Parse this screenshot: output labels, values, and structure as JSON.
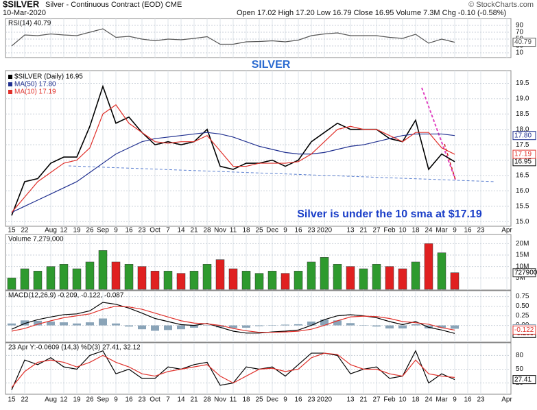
{
  "header": {
    "symbol": "$SILVER",
    "description": "Silver - Continuous Contract (EOD) CME",
    "date": "10-Mar-2020",
    "quote": "Open 17.02 High 17.20 Low 16.79 Close 16.95 Volume 7.3M Chg -0.10 (-0.58%)",
    "copyright": "© StockCharts.com"
  },
  "chart_data": [
    {
      "type": "line",
      "title": "RSI(14) 40.79",
      "ylim": [
        0,
        100
      ],
      "yticks": [
        10,
        30,
        50,
        70,
        90
      ],
      "grid": true,
      "series": [
        {
          "color": "#555555",
          "last_label": "40.79",
          "values": [
            30,
            62,
            60,
            65,
            62,
            60,
            70,
            80,
            55,
            58,
            50,
            45,
            50,
            48,
            52,
            57,
            35,
            35,
            42,
            43,
            45,
            42,
            47,
            60,
            65,
            68,
            60,
            60,
            60,
            55,
            52,
            64,
            38,
            50,
            40.79,
            null,
            null,
            null,
            null
          ]
        }
      ]
    },
    {
      "type": "line",
      "title": "SILVER",
      "annotation": "Silver is under the 10 sma at $17.19",
      "ylim": [
        14.85,
        19.8
      ],
      "yticks": [
        {
          "value": 15,
          "label": "15.0"
        },
        15.5,
        {
          "value": 16,
          "label": "16.0"
        },
        16.5,
        {
          "value": 17,
          "label": "17.0"
        },
        17.5,
        {
          "value": 18,
          "label": "18.0"
        },
        18.5,
        {
          "value": 19,
          "label": "19.0"
        },
        19.5
      ],
      "grid": true,
      "categories": [
        "15",
        "22",
        null,
        "Aug",
        "12",
        "19",
        "26",
        "Sep",
        "9",
        "16",
        "23",
        "Oct",
        "7",
        "14",
        "21",
        "28",
        "Nov",
        "11",
        "18",
        "25",
        "Dec",
        "9",
        "16",
        "23",
        "2020",
        null,
        "13",
        "21",
        "27",
        "Feb",
        "10",
        "18",
        "24",
        "Mar",
        "9",
        "16",
        "23",
        null,
        "Apr"
      ],
      "series": [
        {
          "name": "$SILVER (Daily) 16.95",
          "color": "#000000",
          "last_label": "16.95",
          "values": [
            15.2,
            16.3,
            16.4,
            16.9,
            17.1,
            17.1,
            18.1,
            19.4,
            18.2,
            18.4,
            17.9,
            17.5,
            17.6,
            17.5,
            17.6,
            18.0,
            16.8,
            16.7,
            16.9,
            16.9,
            17.0,
            16.8,
            17.0,
            17.6,
            17.9,
            18.2,
            18.0,
            18.0,
            18.0,
            17.7,
            17.6,
            18.3,
            16.7,
            17.2,
            16.95,
            null,
            null,
            null,
            null
          ]
        },
        {
          "name": "MA(50) 17.80",
          "color": "#1f2f8f",
          "last_label": "17.80",
          "values": [
            15.3,
            15.5,
            15.7,
            15.9,
            16.1,
            16.3,
            16.6,
            16.9,
            17.2,
            17.4,
            17.6,
            17.7,
            17.75,
            17.8,
            17.85,
            17.9,
            17.85,
            17.75,
            17.6,
            17.45,
            17.35,
            17.25,
            17.2,
            17.2,
            17.25,
            17.35,
            17.45,
            17.5,
            17.6,
            17.7,
            17.8,
            17.85,
            17.85,
            17.85,
            17.8,
            null,
            null,
            null,
            null
          ]
        },
        {
          "name": "MA(10) 17.19",
          "color": "#e0302a",
          "last_label": "17.19",
          "values": [
            15.3,
            15.8,
            16.3,
            16.6,
            16.9,
            17.0,
            17.4,
            18.5,
            18.8,
            18.2,
            17.9,
            17.6,
            17.55,
            17.6,
            17.6,
            17.8,
            17.3,
            16.8,
            16.8,
            16.9,
            16.9,
            16.9,
            16.95,
            17.2,
            17.6,
            18.0,
            18.1,
            18.0,
            18.0,
            17.8,
            17.6,
            17.9,
            17.9,
            17.4,
            17.19,
            null,
            null,
            null,
            null
          ]
        }
      ]
    },
    {
      "type": "bar",
      "title": "Volume 7,279,000",
      "ylim": [
        0,
        24
      ],
      "yticks": [
        {
          "value": 5,
          "label": "5M"
        },
        {
          "value": 10,
          "label": "10M"
        },
        {
          "value": 15,
          "label": "15M"
        },
        {
          "value": 20,
          "label": "20M"
        }
      ],
      "grid": true,
      "up_color": "#2e9a2e",
      "down_color": "#e02020",
      "series": [
        {
          "last_label": "7279000",
          "values": [
            5,
            9,
            8,
            10,
            11,
            9,
            12,
            17,
            12,
            11,
            10,
            8,
            8,
            7,
            8,
            11,
            13,
            9,
            8,
            7,
            8,
            7,
            8,
            12,
            14,
            11,
            10,
            9,
            11,
            10,
            9,
            12,
            20,
            16,
            7.279,
            null,
            null,
            null,
            null
          ]
        }
      ]
    },
    {
      "type": "line",
      "title": "MACD(12,26,9) -0.209, -0.122, -0.087",
      "ylim": [
        -0.4,
        0.85
      ],
      "yticks": [
        -0.25,
        {
          "value": 0,
          "label": "0.00"
        },
        0.25,
        {
          "value": 0.5,
          "label": "0.50"
        },
        0.75
      ],
      "grid": true,
      "series": [
        {
          "style": "bar",
          "color": "#8aa4b8",
          "last_label": "-0.087",
          "values": [
            0.05,
            0.13,
            0.12,
            0.1,
            0.08,
            0.05,
            0.08,
            0.18,
            0.05,
            -0.03,
            -0.1,
            -0.14,
            -0.12,
            -0.1,
            -0.06,
            0.01,
            -0.05,
            -0.07,
            -0.06,
            -0.02,
            0.01,
            0.02,
            0.03,
            0.1,
            0.15,
            0.13,
            0.06,
            0.01,
            -0.03,
            -0.08,
            -0.08,
            0.03,
            -0.08,
            -0.06,
            -0.087,
            null,
            null,
            null,
            null
          ]
        },
        {
          "color": "#000000",
          "last_label": "-0.209",
          "values": [
            -0.1,
            0.05,
            0.15,
            0.22,
            0.28,
            0.3,
            0.38,
            0.6,
            0.55,
            0.45,
            0.32,
            0.18,
            0.1,
            0.02,
            0.0,
            0.05,
            -0.05,
            -0.15,
            -0.2,
            -0.2,
            -0.17,
            -0.15,
            -0.12,
            0.0,
            0.15,
            0.25,
            0.28,
            0.25,
            0.2,
            0.1,
            0.02,
            0.1,
            -0.05,
            -0.12,
            -0.209,
            null,
            null,
            null,
            null
          ]
        },
        {
          "color": "#e0302a",
          "last_label": "-0.122",
          "values": [
            -0.15,
            -0.08,
            0.03,
            0.12,
            0.2,
            0.25,
            0.3,
            0.42,
            0.5,
            0.48,
            0.42,
            0.32,
            0.22,
            0.12,
            0.06,
            0.04,
            0.0,
            -0.08,
            -0.14,
            -0.18,
            -0.18,
            -0.17,
            -0.15,
            -0.1,
            0.0,
            0.12,
            0.22,
            0.24,
            0.23,
            0.18,
            0.1,
            0.07,
            0.03,
            -0.06,
            -0.122,
            null,
            null,
            null,
            null
          ]
        }
      ]
    },
    {
      "type": "line",
      "title": "23 Apr Y:-0.0609 (14,3) %D(3) 27.41, 32.12",
      "ylim": [
        0,
        100
      ],
      "yticks": [
        20,
        50,
        80
      ],
      "grid": true,
      "series": [
        {
          "color": "#000000",
          "last_label": "27.41",
          "values": [
            5,
            70,
            60,
            75,
            55,
            50,
            80,
            90,
            40,
            50,
            30,
            30,
            55,
            50,
            60,
            65,
            15,
            20,
            55,
            50,
            55,
            35,
            60,
            85,
            85,
            80,
            40,
            50,
            55,
            30,
            35,
            90,
            20,
            40,
            27.41,
            null,
            null,
            null,
            null
          ]
        },
        {
          "color": "#e0302a",
          "values": [
            10,
            45,
            65,
            70,
            65,
            55,
            65,
            80,
            65,
            55,
            40,
            35,
            45,
            50,
            55,
            60,
            35,
            20,
            35,
            50,
            52,
            45,
            50,
            75,
            85,
            82,
            60,
            50,
            50,
            40,
            35,
            70,
            40,
            35,
            32.12,
            null,
            null,
            null,
            null
          ]
        }
      ]
    }
  ]
}
